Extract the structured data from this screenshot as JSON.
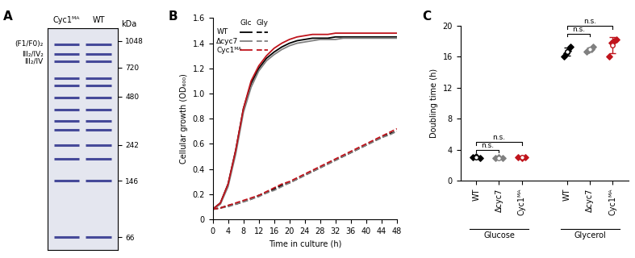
{
  "gel": {
    "panel": "A",
    "lanes": [
      "Cyc1ᴹᴬ",
      "WT"
    ],
    "unit": "kDa",
    "ylim": [
      55,
      1250
    ],
    "markers": [
      1048,
      720,
      480,
      242,
      146,
      66
    ],
    "bands": [
      1000,
      870,
      790,
      620,
      560,
      470,
      400,
      340,
      300,
      242,
      200,
      146,
      66
    ],
    "band_labels": [
      {
        "label": "(F1/F0)₂",
        "kDa": 1000
      },
      {
        "label": "III₂/IV₂",
        "kDa": 870
      },
      {
        "label": "III₂/IV",
        "kDa": 790
      }
    ]
  },
  "chart_data": [
    {
      "type": "line",
      "panel": "B",
      "x_label": "Time in culture (h)",
      "y_label": "Cellular growth (OD₆₀₀)",
      "x": [
        0,
        2,
        4,
        6,
        8,
        10,
        12,
        14,
        16,
        18,
        20,
        22,
        24,
        26,
        28,
        30,
        32,
        34,
        36,
        38,
        40,
        42,
        44,
        46,
        48
      ],
      "xlim": [
        0,
        48
      ],
      "xticks": [
        0,
        4,
        8,
        12,
        16,
        20,
        24,
        28,
        32,
        36,
        40,
        44,
        48
      ],
      "ylim": [
        0,
        1.6
      ],
      "yticks": [
        0,
        0.2,
        0.4,
        0.6,
        0.8,
        1.0,
        1.2,
        1.4,
        1.6
      ],
      "legend": "upper left",
      "conditions": [
        {
          "name": "Glc",
          "line_style": "solid"
        },
        {
          "name": "Gly",
          "line_style": "dashed"
        }
      ],
      "series": [
        {
          "name": "WT",
          "condition": "Glc",
          "color": "#000000",
          "values": [
            0.08,
            0.13,
            0.28,
            0.55,
            0.88,
            1.08,
            1.2,
            1.28,
            1.33,
            1.37,
            1.4,
            1.42,
            1.43,
            1.44,
            1.44,
            1.44,
            1.45,
            1.45,
            1.45,
            1.45,
            1.45,
            1.45,
            1.45,
            1.45,
            1.45
          ]
        },
        {
          "name": "Δcyc7",
          "condition": "Glc",
          "color": "#808080",
          "values": [
            0.08,
            0.12,
            0.26,
            0.52,
            0.85,
            1.05,
            1.18,
            1.26,
            1.31,
            1.35,
            1.38,
            1.4,
            1.41,
            1.42,
            1.43,
            1.43,
            1.43,
            1.44,
            1.44,
            1.44,
            1.44,
            1.44,
            1.44,
            1.44,
            1.44
          ]
        },
        {
          "name": "Cyc1ᴹᴬ",
          "condition": "Glc",
          "color": "#c0141c",
          "values": [
            0.08,
            0.13,
            0.28,
            0.55,
            0.88,
            1.1,
            1.22,
            1.3,
            1.36,
            1.4,
            1.43,
            1.45,
            1.46,
            1.47,
            1.47,
            1.47,
            1.48,
            1.48,
            1.48,
            1.48,
            1.48,
            1.48,
            1.48,
            1.48,
            1.48
          ]
        },
        {
          "name": "WT",
          "condition": "Gly",
          "color": "#000000",
          "values": [
            0.08,
            0.09,
            0.11,
            0.12,
            0.14,
            0.16,
            0.19,
            0.21,
            0.24,
            0.27,
            0.29,
            0.32,
            0.35,
            0.38,
            0.41,
            0.44,
            0.47,
            0.5,
            0.53,
            0.56,
            0.59,
            0.62,
            0.65,
            0.68,
            0.7
          ]
        },
        {
          "name": "Δcyc7",
          "condition": "Gly",
          "color": "#808080",
          "values": [
            0.08,
            0.09,
            0.1,
            0.12,
            0.14,
            0.16,
            0.18,
            0.21,
            0.23,
            0.26,
            0.29,
            0.32,
            0.35,
            0.38,
            0.41,
            0.44,
            0.47,
            0.5,
            0.53,
            0.56,
            0.59,
            0.62,
            0.65,
            0.67,
            0.7
          ]
        },
        {
          "name": "Cyc1ᴹᴬ",
          "condition": "Gly",
          "color": "#c0141c",
          "values": [
            0.08,
            0.09,
            0.11,
            0.13,
            0.15,
            0.17,
            0.19,
            0.22,
            0.25,
            0.28,
            0.3,
            0.33,
            0.36,
            0.39,
            0.42,
            0.45,
            0.48,
            0.51,
            0.54,
            0.57,
            0.6,
            0.63,
            0.66,
            0.69,
            0.72
          ]
        }
      ]
    },
    {
      "type": "scatter",
      "panel": "C",
      "y_label": "Doubling time (h)",
      "categories": [
        "WT",
        "Δcyc7",
        "Cyc1ᴹᴬ",
        null,
        "WT",
        "Δcyc7",
        "Cyc1ᴹᴬ"
      ],
      "ylim": [
        0,
        20
      ],
      "yticks": [
        0,
        4,
        8,
        12,
        16,
        20
      ],
      "colors": [
        "#000000",
        "#808080",
        "#c0141c",
        null,
        "#000000",
        "#808080",
        "#c0141c"
      ],
      "marker": "diamond",
      "points": [
        [
          3.0,
          3.1,
          2.9
        ],
        [
          2.9,
          3.0,
          2.9
        ],
        [
          3.0,
          2.9,
          3.0
        ],
        null,
        [
          16.0,
          16.5,
          16.8,
          17.3
        ],
        [
          16.7,
          16.9,
          17.0,
          17.3
        ],
        [
          16.0,
          17.8,
          18.0,
          18.2
        ]
      ],
      "means": [
        3.0,
        2.93,
        2.97,
        null,
        16.65,
        16.98,
        17.5
      ],
      "sd": [
        0.1,
        0.06,
        0.06,
        null,
        0.55,
        0.25,
        1.0
      ],
      "groups": [
        {
          "label": "Glucose",
          "members": [
            0,
            1,
            2
          ]
        },
        {
          "label": "Glycerol",
          "members": [
            4,
            5,
            6
          ]
        }
      ],
      "annotations": [
        {
          "text": "n.s.",
          "from": 0,
          "to": 1,
          "y": 4.0
        },
        {
          "text": "n.s.",
          "from": 0,
          "to": 2,
          "y": 5.0
        },
        {
          "text": "n.s.",
          "from": 4,
          "to": 5,
          "y": 19.0
        },
        {
          "text": "n.s.",
          "from": 4,
          "to": 6,
          "y": 20.0
        }
      ]
    }
  ]
}
